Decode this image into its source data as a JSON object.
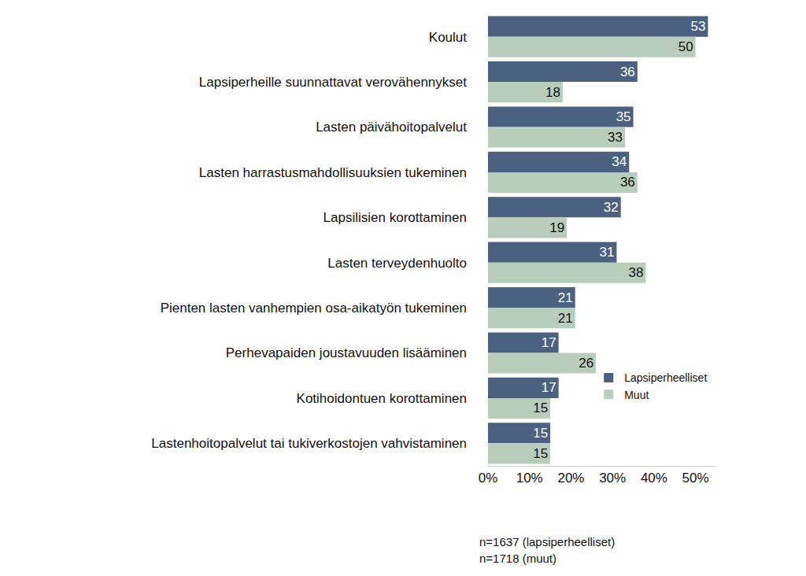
{
  "chart_data": {
    "type": "bar",
    "orientation": "horizontal",
    "categories": [
      "Koulut",
      "Lapsiperheille suunnattavat verovähennykset",
      "Lasten päivähoitopalvelut",
      "Lasten harrastusmahdollisuuksien tukeminen",
      "Lapsilisien korottaminen",
      "Lasten terveydenhuolto",
      "Pienten lasten vanhempien osa-aikatyön tukeminen",
      "Perhevapaiden joustavuuden lisääminen",
      "Kotihoidontuen korottaminen",
      "Lastenhoitopalvelut tai tukiverkostojen vahvistaminen"
    ],
    "series": [
      {
        "name": "Lapsiperheelliset",
        "color": "#4b617f",
        "values": [
          53,
          36,
          35,
          34,
          32,
          31,
          21,
          17,
          17,
          15
        ]
      },
      {
        "name": "Muut",
        "color": "#b9cdbc",
        "values": [
          50,
          18,
          33,
          36,
          19,
          38,
          21,
          26,
          15,
          15
        ]
      }
    ],
    "xlim": [
      0,
      55
    ],
    "xticks": [
      {
        "value": 0,
        "label": "0%"
      },
      {
        "value": 10,
        "label": "10%"
      },
      {
        "value": 20,
        "label": "20%"
      },
      {
        "value": 30,
        "label": "30%"
      },
      {
        "value": 40,
        "label": "40%"
      },
      {
        "value": 50,
        "label": "50%"
      }
    ],
    "grid": false,
    "legend": "lower right",
    "data_labels": true,
    "annotations": [
      "n=1637 (lapsiperheelliset)",
      "n=1718 (muut)"
    ]
  }
}
